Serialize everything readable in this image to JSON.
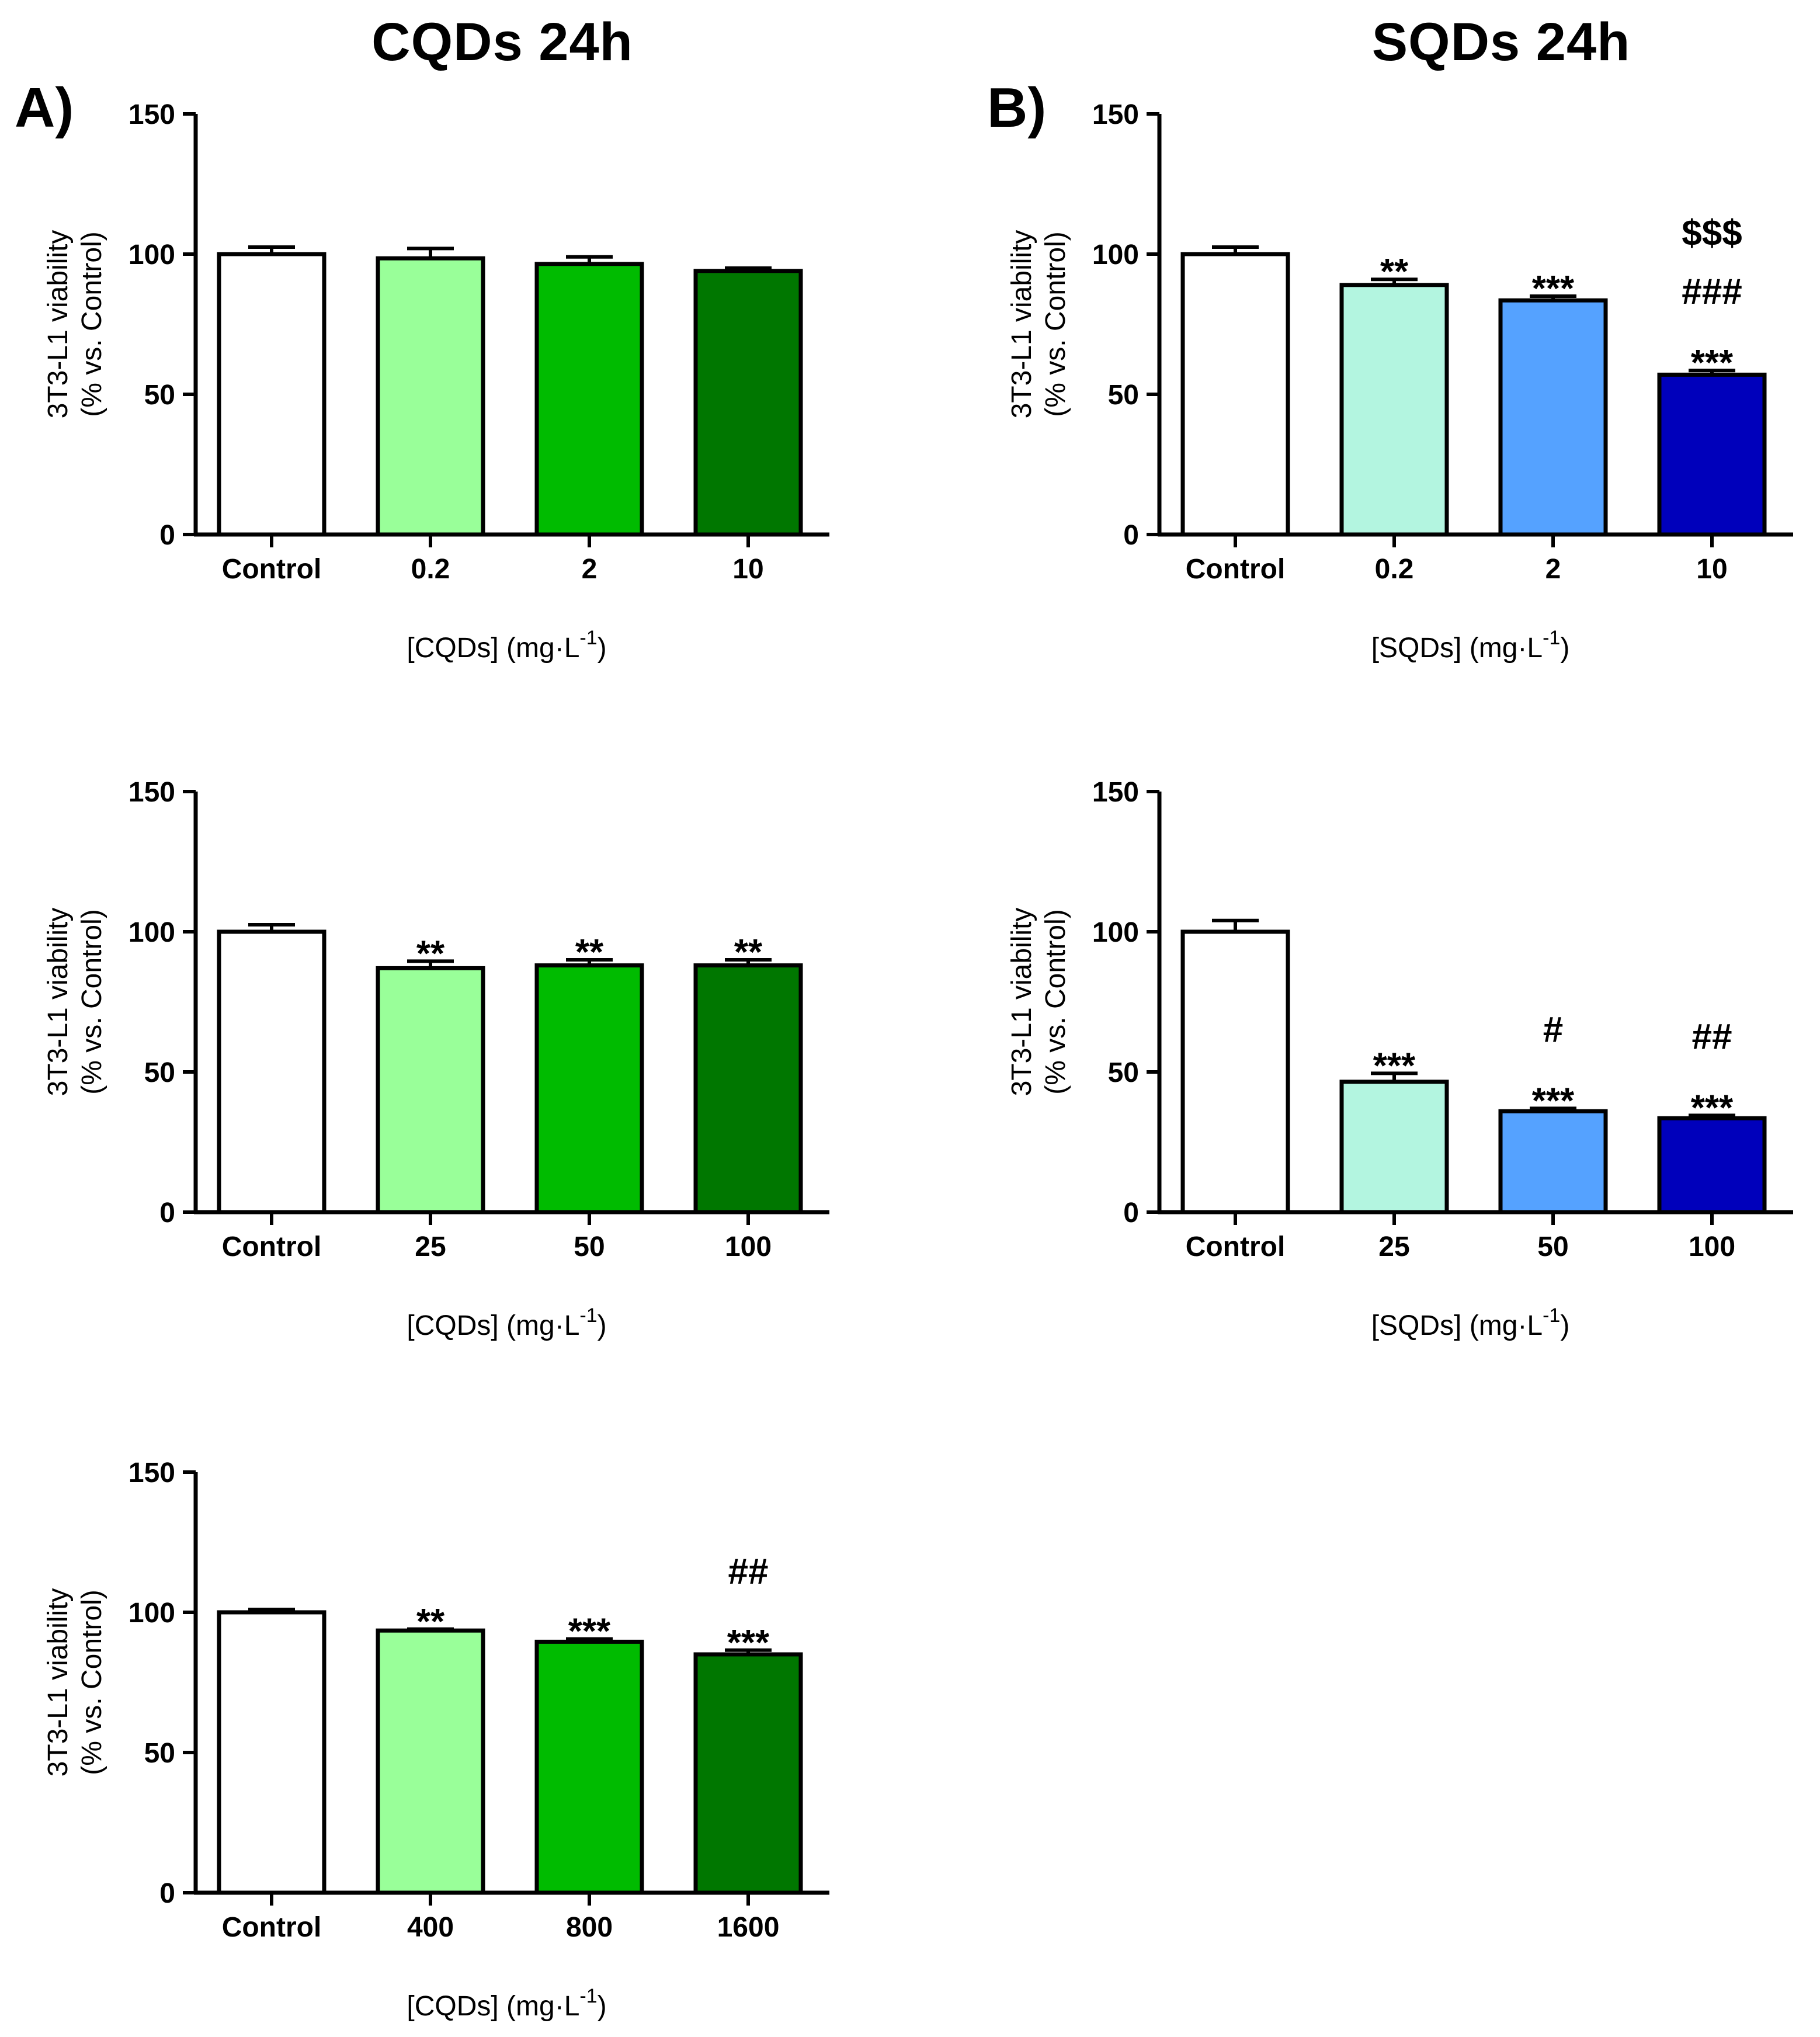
{
  "figure": {
    "column_titles": [
      "CQDs 24h",
      "SQDs 24h"
    ],
    "panel_labels": [
      "A)",
      "B)"
    ]
  },
  "chart_data": [
    {
      "type": "bar",
      "panel": "A",
      "title": "CQDs 24h",
      "categories": [
        "Control",
        "0.2",
        "2",
        "10"
      ],
      "values": [
        100,
        98.5,
        96.5,
        94
      ],
      "errors": [
        2.5,
        3.5,
        2.5,
        1
      ],
      "colors": [
        "#ffffff",
        "#99ff99",
        "#00bb00",
        "#007700"
      ],
      "annotations": [
        [],
        [],
        [],
        []
      ],
      "xlabel": "[CQDs] (mg·L",
      "xlabel_sup": "-1",
      "xlabel_end": ")",
      "ylabel_lines": [
        "3T3-L1 viability",
        "(% vs. Control)"
      ],
      "ylim": [
        0,
        150
      ],
      "yticks": [
        0,
        50,
        100,
        150
      ]
    },
    {
      "type": "bar",
      "panel": "B",
      "title": "SQDs 24h",
      "categories": [
        "Control",
        "0.2",
        "2",
        "10"
      ],
      "values": [
        100,
        89,
        83.5,
        57
      ],
      "errors": [
        2.5,
        2,
        1.5,
        1.5
      ],
      "colors": [
        "#ffffff",
        "#b3f5e0",
        "#55a2ff",
        "#0000bb"
      ],
      "annotations": [
        [],
        [
          "**"
        ],
        [
          "***"
        ],
        [
          "$$$",
          "###",
          "***"
        ]
      ],
      "xlabel": "[SQDs] (mg·L",
      "xlabel_sup": "-1",
      "xlabel_end": ")",
      "ylabel_lines": [
        "3T3-L1 viability",
        "(% vs. Control)"
      ],
      "ylim": [
        0,
        150
      ],
      "yticks": [
        0,
        50,
        100,
        150
      ]
    },
    {
      "type": "bar",
      "panel": "A",
      "title": "",
      "categories": [
        "Control",
        "25",
        "50",
        "100"
      ],
      "values": [
        100,
        87,
        88,
        88
      ],
      "errors": [
        2.5,
        2.5,
        2,
        2
      ],
      "colors": [
        "#ffffff",
        "#99ff99",
        "#00bb00",
        "#007700"
      ],
      "annotations": [
        [],
        [
          "**"
        ],
        [
          "**"
        ],
        [
          "**"
        ]
      ],
      "xlabel": "[CQDs] (mg·L",
      "xlabel_sup": "-1",
      "xlabel_end": ")",
      "ylabel_lines": [
        "3T3-L1 viability",
        "(% vs. Control)"
      ],
      "ylim": [
        0,
        150
      ],
      "yticks": [
        0,
        50,
        100,
        150
      ]
    },
    {
      "type": "bar",
      "panel": "B",
      "title": "",
      "categories": [
        "Control",
        "25",
        "50",
        "100"
      ],
      "values": [
        100,
        46.5,
        36,
        33.5
      ],
      "errors": [
        4,
        3,
        1,
        1
      ],
      "colors": [
        "#ffffff",
        "#b3f5e0",
        "#55a2ff",
        "#0000bb"
      ],
      "annotations": [
        [],
        [
          "***"
        ],
        [
          "#",
          "***"
        ],
        [
          "##",
          "***"
        ]
      ],
      "xlabel": "[SQDs] (mg·L",
      "xlabel_sup": "-1",
      "xlabel_end": ")",
      "ylabel_lines": [
        "3T3-L1 viability",
        "(% vs. Control)"
      ],
      "ylim": [
        0,
        150
      ],
      "yticks": [
        0,
        50,
        100,
        150
      ]
    },
    {
      "type": "bar",
      "panel": "A",
      "title": "",
      "categories": [
        "Control",
        "400",
        "800",
        "1600"
      ],
      "values": [
        100,
        93.5,
        89.5,
        85
      ],
      "errors": [
        1,
        0.5,
        1,
        1.5
      ],
      "colors": [
        "#ffffff",
        "#99ff99",
        "#00bb00",
        "#007700"
      ],
      "annotations": [
        [],
        [
          "**"
        ],
        [
          "***"
        ],
        [
          "##",
          "***"
        ]
      ],
      "xlabel": "[CQDs] (mg·L",
      "xlabel_sup": "-1",
      "xlabel_end": ")",
      "ylabel_lines": [
        "3T3-L1 viability",
        "(% vs. Control)"
      ],
      "ylim": [
        0,
        150
      ],
      "yticks": [
        0,
        50,
        100,
        150
      ]
    }
  ]
}
